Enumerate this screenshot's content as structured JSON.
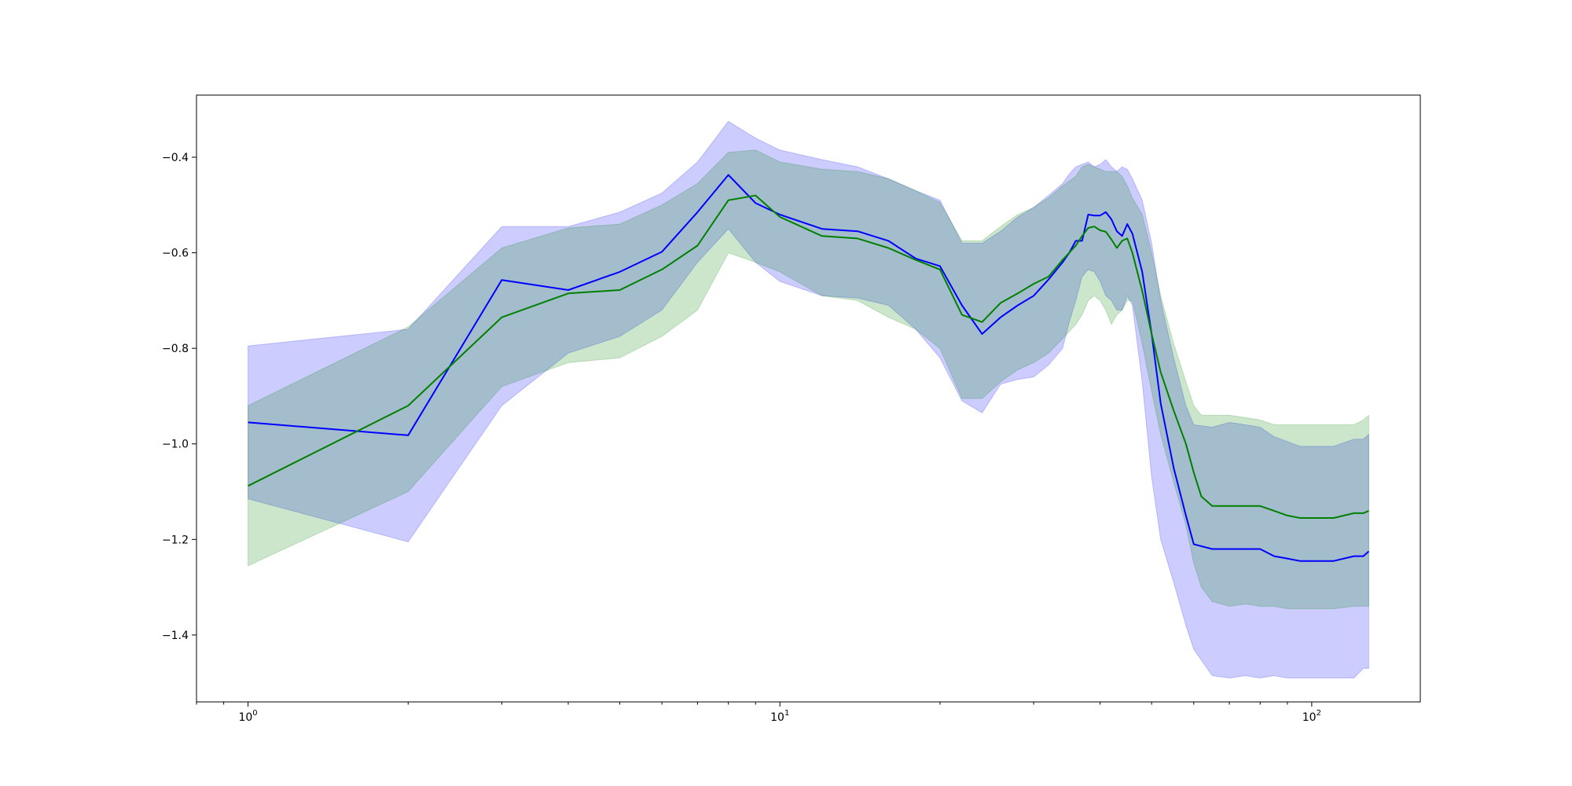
{
  "chart_data": {
    "type": "line",
    "title": "",
    "xlabel": "",
    "ylabel": "",
    "x_scale": "log",
    "xlim": [
      0.8,
      160
    ],
    "ylim": [
      -1.54,
      -0.27
    ],
    "x_ticks": [
      {
        "value": 1,
        "base": "10",
        "exp": "0"
      },
      {
        "value": 10,
        "base": "10",
        "exp": "1"
      },
      {
        "value": 100,
        "base": "10",
        "exp": "2"
      }
    ],
    "y_ticks": [
      {
        "value": -0.4,
        "label": "−0.4"
      },
      {
        "value": -0.6,
        "label": "−0.6"
      },
      {
        "value": -0.8,
        "label": "−0.8"
      },
      {
        "value": -1.0,
        "label": "−1.0"
      },
      {
        "value": -1.2,
        "label": "−1.2"
      },
      {
        "value": -1.4,
        "label": "−1.4"
      }
    ],
    "grid": false,
    "legend": "none",
    "series": [
      {
        "color": "#0000ff",
        "band_color": "#0000ff",
        "band_opacity": 0.2,
        "x": [
          1,
          2,
          3,
          4,
          5,
          6,
          7,
          8,
          9,
          10,
          12,
          14,
          16,
          18,
          20,
          22,
          24,
          26,
          28,
          30,
          32,
          34,
          35,
          36,
          37,
          38,
          39,
          40,
          41,
          42,
          43,
          44,
          45,
          46,
          48,
          50,
          52,
          55,
          58,
          60,
          65,
          70,
          75,
          80,
          85,
          90,
          95,
          100,
          110,
          120,
          125,
          128
        ],
        "mean": [
          -0.955,
          -0.982,
          -0.657,
          -0.678,
          -0.64,
          -0.598,
          -0.515,
          -0.437,
          -0.496,
          -0.52,
          -0.55,
          -0.555,
          -0.575,
          -0.612,
          -0.628,
          -0.71,
          -0.77,
          -0.735,
          -0.71,
          -0.69,
          -0.656,
          -0.62,
          -0.6,
          -0.575,
          -0.575,
          -0.52,
          -0.522,
          -0.522,
          -0.515,
          -0.53,
          -0.555,
          -0.565,
          -0.54,
          -0.56,
          -0.64,
          -0.77,
          -0.915,
          -1.05,
          -1.15,
          -1.21,
          -1.22,
          -1.22,
          -1.22,
          -1.22,
          -1.235,
          -1.24,
          -1.245,
          -1.245,
          -1.245,
          -1.235,
          -1.235,
          -1.225
        ],
        "lower": [
          -1.115,
          -1.205,
          -0.92,
          -0.81,
          -0.775,
          -0.72,
          -0.62,
          -0.55,
          -0.62,
          -0.66,
          -0.69,
          -0.695,
          -0.71,
          -0.76,
          -0.82,
          -0.91,
          -0.935,
          -0.875,
          -0.865,
          -0.86,
          -0.835,
          -0.8,
          -0.745,
          -0.7,
          -0.65,
          -0.635,
          -0.64,
          -0.66,
          -0.69,
          -0.7,
          -0.72,
          -0.72,
          -0.69,
          -0.71,
          -0.87,
          -1.07,
          -1.2,
          -1.29,
          -1.38,
          -1.43,
          -1.485,
          -1.49,
          -1.485,
          -1.49,
          -1.485,
          -1.49,
          -1.49,
          -1.49,
          -1.49,
          -1.49,
          -1.47,
          -1.47
        ],
        "upper": [
          -0.795,
          -0.76,
          -0.545,
          -0.545,
          -0.515,
          -0.475,
          -0.41,
          -0.325,
          -0.36,
          -0.385,
          -0.405,
          -0.42,
          -0.445,
          -0.47,
          -0.49,
          -0.58,
          -0.58,
          -0.555,
          -0.525,
          -0.505,
          -0.48,
          -0.455,
          -0.435,
          -0.42,
          -0.415,
          -0.41,
          -0.42,
          -0.415,
          -0.405,
          -0.42,
          -0.43,
          -0.42,
          -0.425,
          -0.445,
          -0.49,
          -0.58,
          -0.7,
          -0.82,
          -0.92,
          -0.96,
          -0.965,
          -0.955,
          -0.96,
          -0.965,
          -0.985,
          -0.995,
          -1.005,
          -1.005,
          -1.005,
          -0.99,
          -0.99,
          -0.98
        ]
      },
      {
        "color": "#008000",
        "band_color": "#008000",
        "band_opacity": 0.2,
        "x": [
          1,
          2,
          3,
          4,
          5,
          6,
          7,
          8,
          9,
          10,
          12,
          14,
          16,
          18,
          20,
          22,
          24,
          26,
          28,
          30,
          32,
          34,
          36,
          37,
          38,
          39,
          40,
          41,
          42,
          43,
          44,
          45,
          46,
          48,
          50,
          52,
          55,
          58,
          60,
          62,
          65,
          70,
          75,
          80,
          85,
          90,
          95,
          100,
          110,
          120,
          125,
          128
        ],
        "mean": [
          -1.088,
          -0.92,
          -0.735,
          -0.685,
          -0.678,
          -0.635,
          -0.585,
          -0.49,
          -0.48,
          -0.525,
          -0.565,
          -0.57,
          -0.59,
          -0.615,
          -0.635,
          -0.73,
          -0.745,
          -0.705,
          -0.685,
          -0.665,
          -0.65,
          -0.615,
          -0.585,
          -0.565,
          -0.548,
          -0.545,
          -0.553,
          -0.556,
          -0.572,
          -0.59,
          -0.575,
          -0.57,
          -0.6,
          -0.68,
          -0.77,
          -0.85,
          -0.93,
          -1.0,
          -1.06,
          -1.11,
          -1.13,
          -1.13,
          -1.13,
          -1.13,
          -1.14,
          -1.15,
          -1.155,
          -1.155,
          -1.155,
          -1.145,
          -1.145,
          -1.14
        ],
        "lower": [
          -1.255,
          -1.1,
          -0.88,
          -0.83,
          -0.82,
          -0.775,
          -0.72,
          -0.6,
          -0.62,
          -0.64,
          -0.69,
          -0.7,
          -0.735,
          -0.76,
          -0.8,
          -0.905,
          -0.905,
          -0.87,
          -0.845,
          -0.83,
          -0.81,
          -0.78,
          -0.75,
          -0.73,
          -0.7,
          -0.69,
          -0.7,
          -0.72,
          -0.75,
          -0.73,
          -0.72,
          -0.7,
          -0.7,
          -0.79,
          -0.89,
          -0.98,
          -1.08,
          -1.17,
          -1.25,
          -1.3,
          -1.33,
          -1.34,
          -1.335,
          -1.34,
          -1.34,
          -1.345,
          -1.345,
          -1.345,
          -1.345,
          -1.34,
          -1.34,
          -1.34
        ],
        "upper": [
          -0.92,
          -0.755,
          -0.59,
          -0.548,
          -0.54,
          -0.5,
          -0.455,
          -0.39,
          -0.385,
          -0.41,
          -0.425,
          -0.43,
          -0.445,
          -0.47,
          -0.495,
          -0.575,
          -0.575,
          -0.545,
          -0.52,
          -0.505,
          -0.485,
          -0.46,
          -0.44,
          -0.42,
          -0.415,
          -0.42,
          -0.425,
          -0.43,
          -0.43,
          -0.43,
          -0.44,
          -0.46,
          -0.485,
          -0.52,
          -0.6,
          -0.69,
          -0.79,
          -0.87,
          -0.92,
          -0.94,
          -0.94,
          -0.94,
          -0.945,
          -0.95,
          -0.96,
          -0.96,
          -0.96,
          -0.96,
          -0.96,
          -0.96,
          -0.95,
          -0.94
        ]
      }
    ]
  }
}
